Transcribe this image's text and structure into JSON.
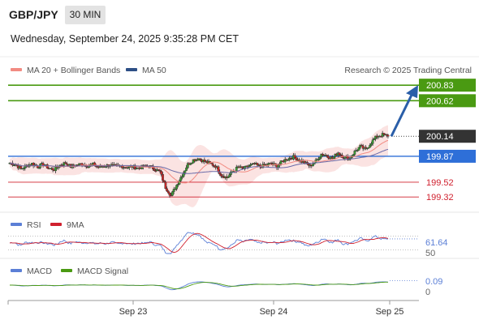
{
  "header": {
    "pair": "GBP/JPY",
    "timeframe": "30 MIN",
    "datetime": "Wednesday, September 24, 2025 9:35:28 PM CET"
  },
  "chart_data": [
    {
      "type": "candlestick",
      "title": "GBP/JPY",
      "legend": [
        {
          "name": "MA 20 + Bollinger Bands",
          "color": "#f28b82"
        },
        {
          "name": "MA 50",
          "color": "#2d4f86"
        }
      ],
      "legend_placement": "top-left",
      "credit": "Research © 2025 Trading Central",
      "x_ticks": [
        "Sep 23",
        "Sep 24",
        "Sep 25"
      ],
      "price_labels": [
        {
          "value": "200.83",
          "kind": "target",
          "color": "#4a9a12"
        },
        {
          "value": "200.62",
          "kind": "target",
          "color": "#4a9a12"
        },
        {
          "value": "200.14",
          "kind": "last",
          "color": "#333333"
        },
        {
          "value": "199.87",
          "kind": "pivot",
          "color": "#2e6fd8"
        },
        {
          "value": "199.52",
          "kind": "support",
          "color": "#d0202e"
        },
        {
          "value": "199.32",
          "kind": "support",
          "color": "#d0202e"
        }
      ],
      "ylim": [
        199.18,
        200.93
      ],
      "close_path": [
        199.78,
        199.76,
        199.7,
        199.74,
        199.77,
        199.73,
        199.76,
        199.71,
        199.69,
        199.75,
        199.78,
        199.73,
        199.75,
        199.77,
        199.74,
        199.76,
        199.72,
        199.74,
        199.75,
        199.73,
        199.74,
        199.72,
        199.73,
        199.71,
        199.73,
        199.74,
        199.7,
        199.66,
        199.45,
        199.34,
        199.48,
        199.62,
        199.76,
        199.82,
        199.84,
        199.8,
        199.77,
        199.74,
        199.62,
        199.58,
        199.66,
        199.72,
        199.7,
        199.74,
        199.76,
        199.73,
        199.75,
        199.77,
        199.74,
        199.8,
        199.84,
        199.86,
        199.82,
        199.78,
        199.74,
        199.8,
        199.9,
        199.88,
        199.84,
        199.92,
        199.86,
        199.84,
        199.93,
        200.0,
        199.96,
        200.06,
        200.14,
        200.16,
        200.14
      ]
    },
    {
      "type": "line",
      "title": "RSI",
      "series": [
        {
          "name": "RSI",
          "color": "#5b7fd6"
        },
        {
          "name": "9MA",
          "color": "#d0202e"
        }
      ],
      "value_labels": [
        "61.64",
        "50"
      ],
      "ylim": [
        20,
        80
      ]
    },
    {
      "type": "line",
      "title": "MACD",
      "series": [
        {
          "name": "MACD",
          "color": "#5b7fd6"
        },
        {
          "name": "MACD Signal",
          "color": "#4a9a12"
        }
      ],
      "value_labels": [
        "0.09",
        "0"
      ],
      "ylim": [
        -0.25,
        0.15
      ]
    }
  ]
}
